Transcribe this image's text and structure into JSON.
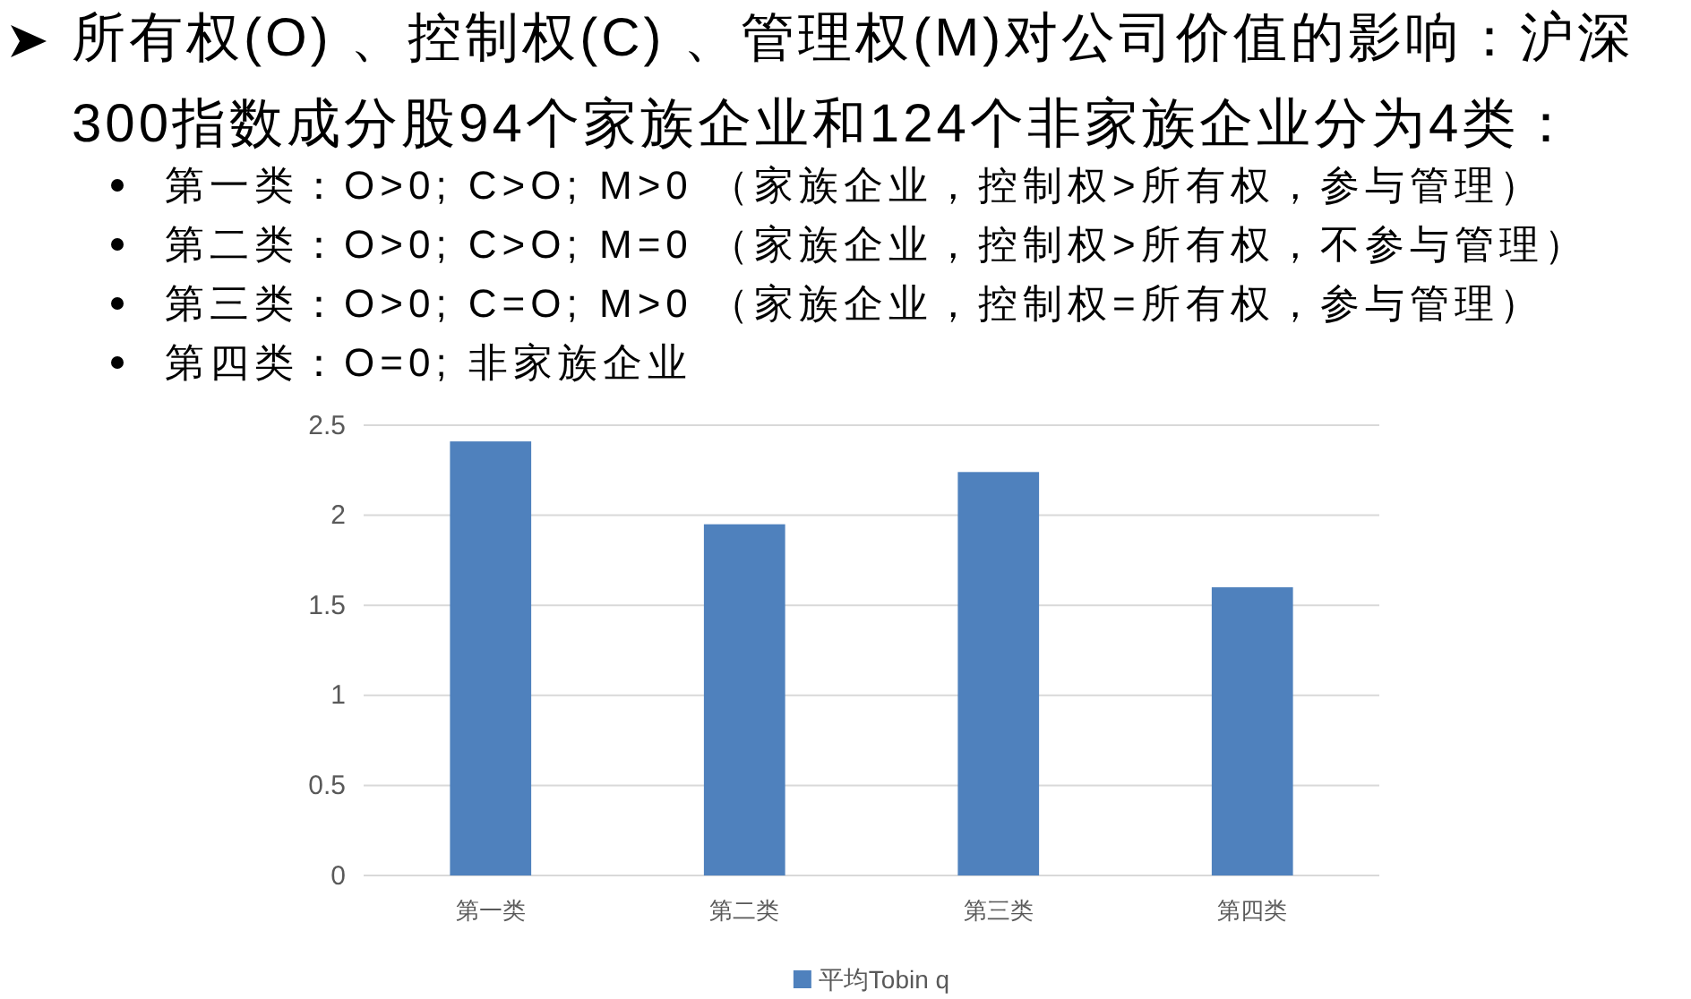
{
  "chart_data": {
    "type": "bar",
    "title": "所有权(O) 、控制权(C) 、管理权(M)对公司价值的影响：沪深300指数成分股94个家族企业和124个非家族企业分为4类：",
    "annotations": [
      "第一类：O>0; C>O; M>0 （家族企业，控制权>所有权，参与管理）",
      "第二类：O>0; C>O; M=0 （家族企业，控制权>所有权，不参与管理）",
      "第三类：O>0; C=O; M>0 （家族企业，控制权=所有权，参与管理）",
      "第四类：O=0; 非家族企业"
    ],
    "categories": [
      "第一类",
      "第二类",
      "第三类",
      "第四类"
    ],
    "series": [
      {
        "name": "平均Tobin q",
        "color": "#4f81bd",
        "values": [
          2.41,
          1.95,
          2.24,
          1.6
        ]
      }
    ],
    "ylim": [
      0,
      2.5
    ],
    "yticks": [
      0,
      0.5,
      1,
      1.5,
      2,
      2.5
    ],
    "grid": "y",
    "legend": "bottom"
  }
}
